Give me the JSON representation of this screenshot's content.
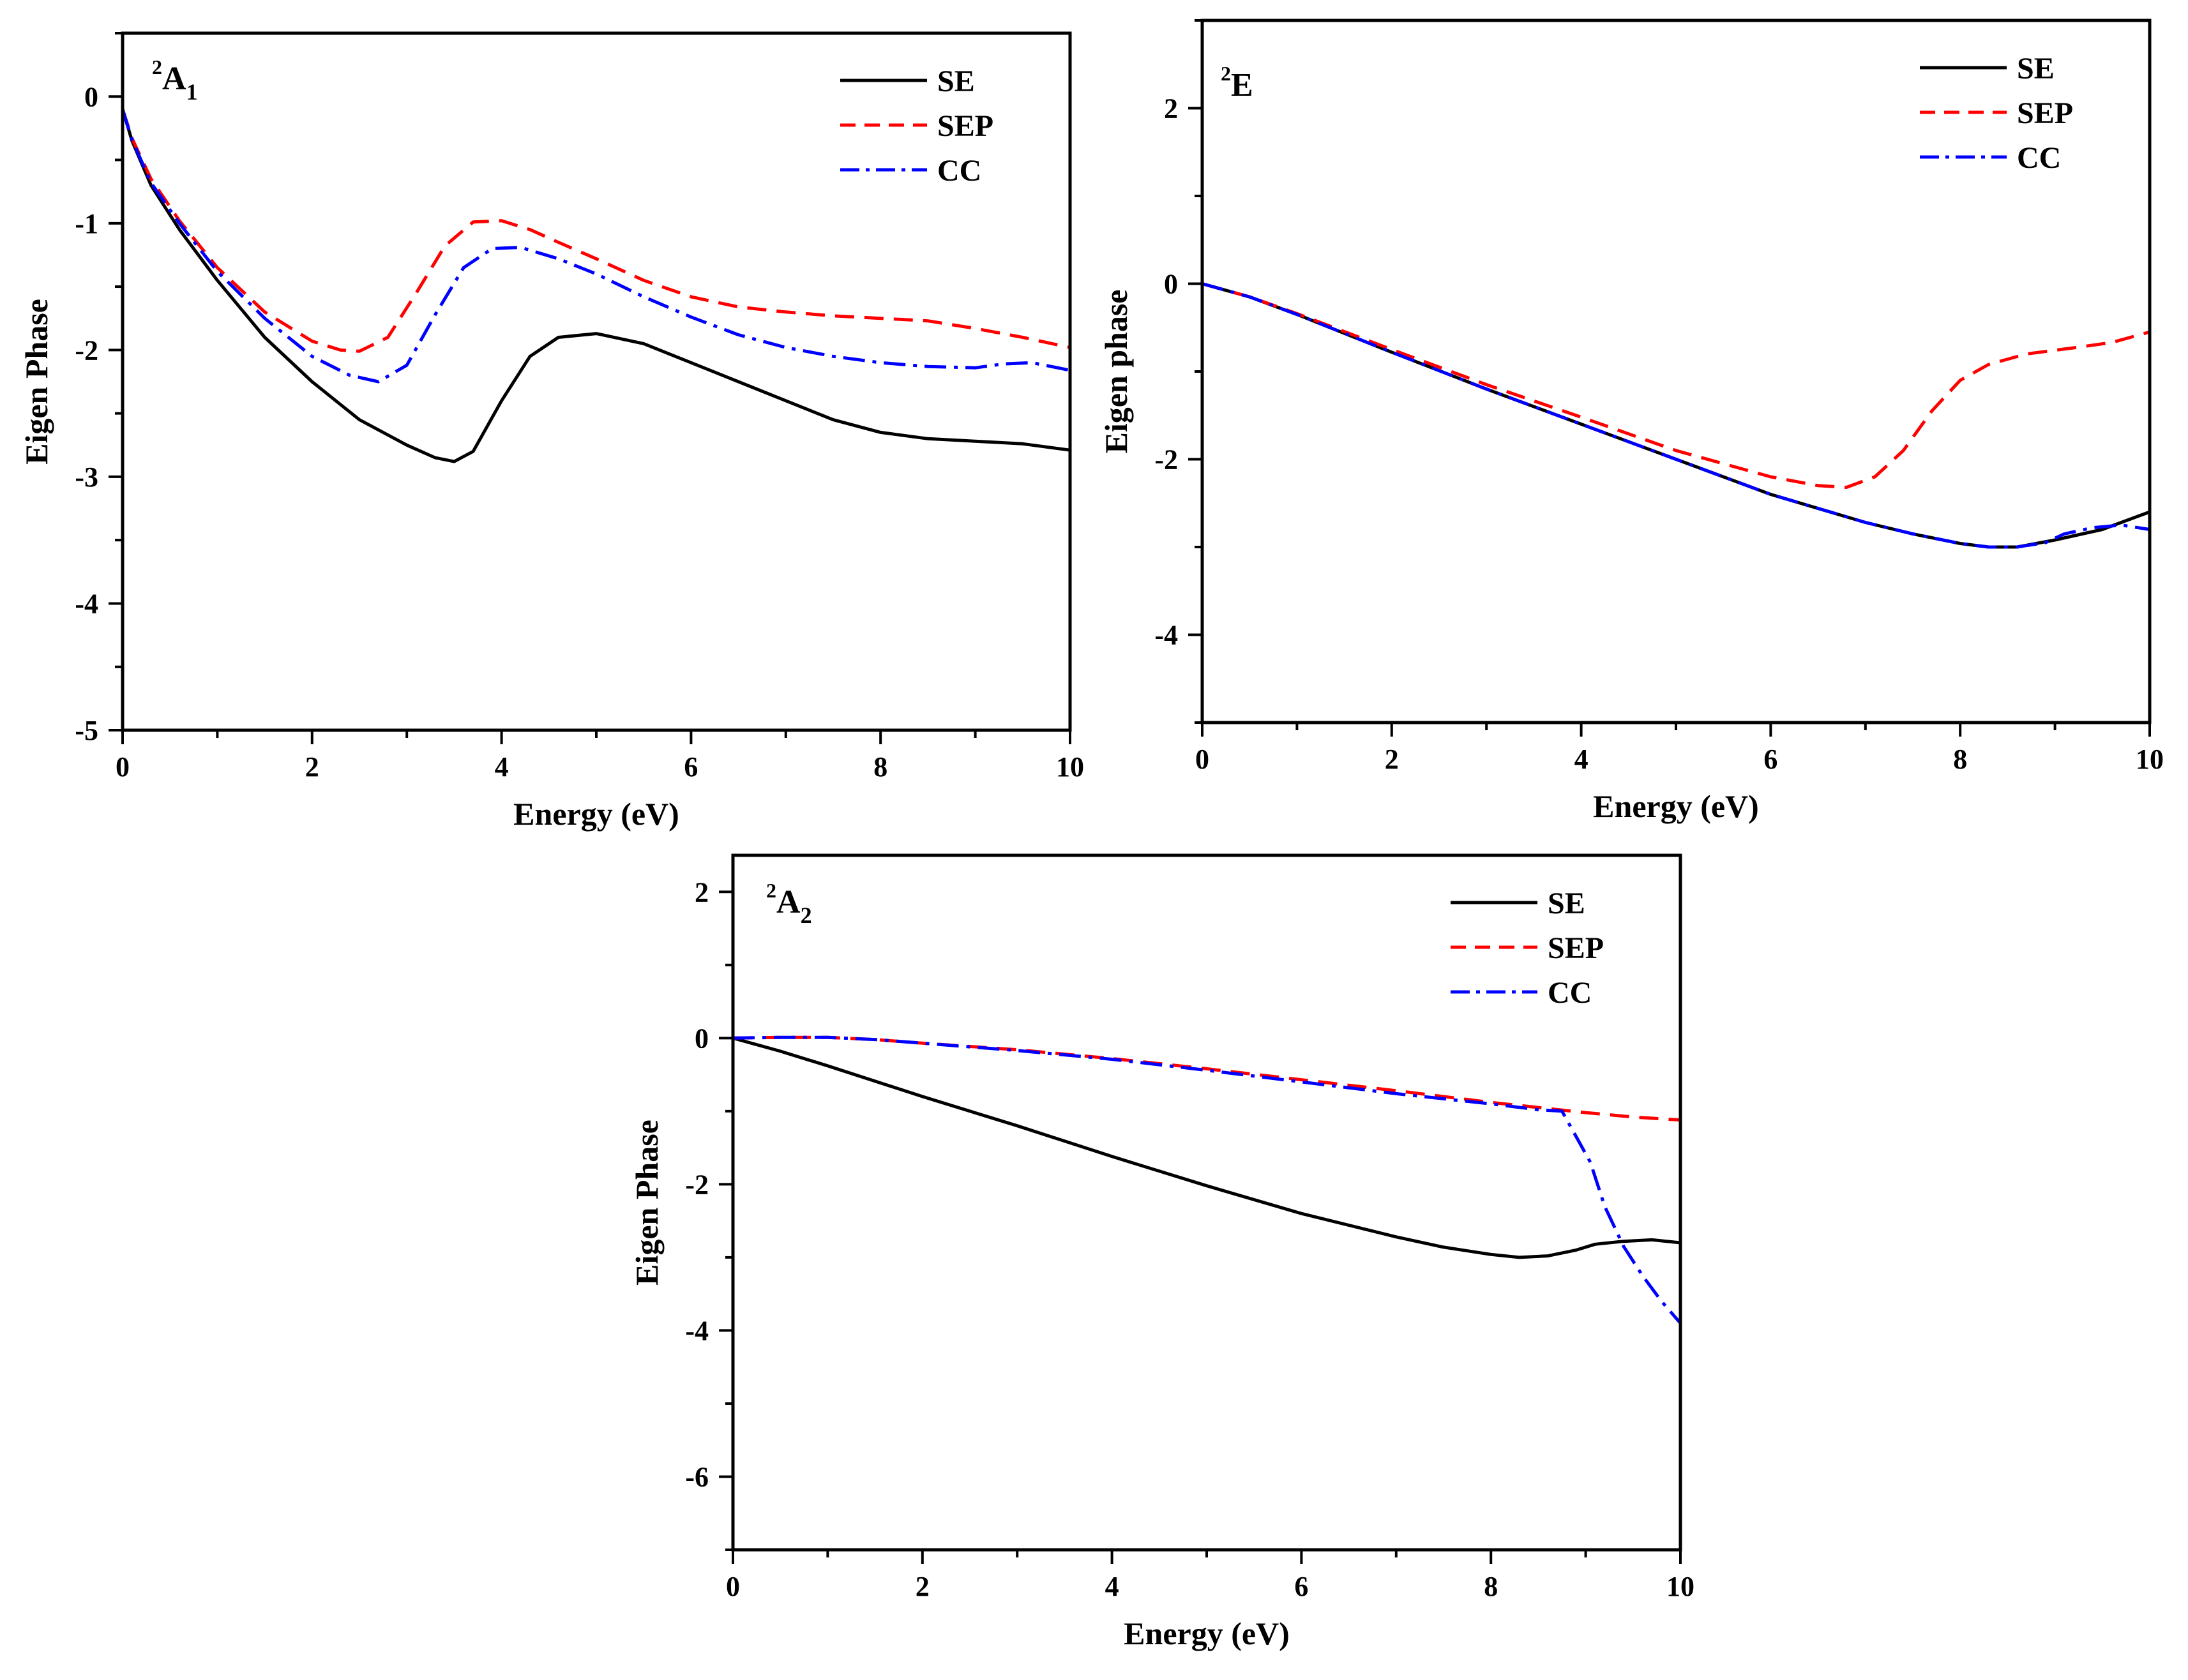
{
  "colors": {
    "SE": "#000000",
    "SEP": "#ff0000",
    "CC": "#0000ff",
    "axis": "#000000"
  },
  "chart_data": [
    {
      "type": "line",
      "panel_label": {
        "superscript": "2",
        "main": "A",
        "subscript": "1"
      },
      "xlabel": "Energy (eV)",
      "ylabel": "Eigen Phase",
      "xlim": [
        0,
        10
      ],
      "ylim": [
        -5,
        0.5
      ],
      "xticks": [
        0,
        2,
        4,
        6,
        8,
        10
      ],
      "yticks": [
        0,
        -1,
        -2,
        -3,
        -4,
        -5
      ],
      "x_minor_step": 1,
      "y_minor_step": 0.5,
      "legend_position": "top-right",
      "series": [
        {
          "name": "SE",
          "style": "solid",
          "x": [
            0,
            0.1,
            0.3,
            0.6,
            1,
            1.5,
            2,
            2.5,
            3,
            3.3,
            3.5,
            3.7,
            4,
            4.3,
            4.6,
            5,
            5.5,
            6,
            6.5,
            7,
            7.5,
            8,
            8.5,
            9,
            9.5,
            10
          ],
          "y": [
            -0.1,
            -0.35,
            -0.7,
            -1.05,
            -1.45,
            -1.9,
            -2.25,
            -2.55,
            -2.75,
            -2.85,
            -2.88,
            -2.8,
            -2.4,
            -2.05,
            -1.9,
            -1.87,
            -1.95,
            -2.1,
            -2.25,
            -2.4,
            -2.55,
            -2.65,
            -2.7,
            -2.72,
            -2.74,
            -2.79
          ]
        },
        {
          "name": "SEP",
          "style": "dashed",
          "x": [
            0,
            0.1,
            0.3,
            0.6,
            1,
            1.5,
            2,
            2.3,
            2.5,
            2.8,
            3.1,
            3.4,
            3.7,
            4,
            4.3,
            4.6,
            5,
            5.5,
            6,
            6.5,
            7,
            7.5,
            8,
            8.5,
            9,
            9.5,
            10
          ],
          "y": [
            -0.1,
            -0.33,
            -0.65,
            -0.98,
            -1.35,
            -1.7,
            -1.93,
            -2.0,
            -2.01,
            -1.9,
            -1.55,
            -1.18,
            -0.99,
            -0.98,
            -1.05,
            -1.15,
            -1.28,
            -1.45,
            -1.58,
            -1.66,
            -1.7,
            -1.73,
            -1.75,
            -1.77,
            -1.83,
            -1.9,
            -1.98
          ]
        },
        {
          "name": "CC",
          "style": "dashdot",
          "x": [
            0,
            0.1,
            0.3,
            0.6,
            1,
            1.5,
            2,
            2.4,
            2.7,
            3,
            3.3,
            3.6,
            3.9,
            4.2,
            4.6,
            5,
            5.5,
            6,
            6.5,
            7,
            7.5,
            8,
            8.5,
            9,
            9.3,
            9.6,
            10
          ],
          "y": [
            -0.1,
            -0.34,
            -0.68,
            -1.0,
            -1.38,
            -1.75,
            -2.05,
            -2.2,
            -2.25,
            -2.12,
            -1.72,
            -1.35,
            -1.2,
            -1.19,
            -1.28,
            -1.4,
            -1.58,
            -1.74,
            -1.88,
            -1.98,
            -2.05,
            -2.1,
            -2.13,
            -2.14,
            -2.11,
            -2.1,
            -2.16
          ]
        }
      ]
    },
    {
      "type": "line",
      "panel_label": {
        "superscript": "2",
        "main": "E",
        "subscript": ""
      },
      "xlabel": "Energy (eV)",
      "ylabel": "Eigen phase",
      "xlim": [
        0,
        10
      ],
      "ylim": [
        -5,
        3
      ],
      "xticks": [
        0,
        2,
        4,
        6,
        8,
        10
      ],
      "yticks": [
        2,
        0,
        -2,
        -4
      ],
      "x_minor_step": 1,
      "y_minor_step": 1,
      "legend_position": "top-right",
      "series": [
        {
          "name": "SE",
          "style": "solid",
          "x": [
            0,
            0.5,
            1,
            2,
            3,
            4,
            5,
            6,
            7,
            7.5,
            8,
            8.3,
            8.6,
            9,
            9.5,
            10
          ],
          "y": [
            0,
            -0.15,
            -0.35,
            -0.78,
            -1.2,
            -1.6,
            -2.0,
            -2.4,
            -2.72,
            -2.85,
            -2.96,
            -3.0,
            -3.0,
            -2.92,
            -2.8,
            -2.6
          ]
        },
        {
          "name": "SEP",
          "style": "dashed",
          "x": [
            0,
            0.5,
            1,
            2,
            3,
            4,
            5,
            6,
            6.5,
            6.8,
            7.1,
            7.4,
            7.7,
            8,
            8.3,
            8.7,
            9.2,
            9.6,
            10
          ],
          "y": [
            0,
            -0.15,
            -0.34,
            -0.75,
            -1.15,
            -1.52,
            -1.9,
            -2.2,
            -2.3,
            -2.32,
            -2.2,
            -1.9,
            -1.45,
            -1.1,
            -0.92,
            -0.8,
            -0.73,
            -0.67,
            -0.55
          ]
        },
        {
          "name": "CC",
          "style": "dashdot",
          "x": [
            0,
            0.5,
            1,
            2,
            3,
            4,
            5,
            6,
            7,
            7.5,
            8,
            8.3,
            8.6,
            8.9,
            9.1,
            9.4,
            9.7,
            10
          ],
          "y": [
            0,
            -0.15,
            -0.35,
            -0.78,
            -1.2,
            -1.6,
            -2.0,
            -2.4,
            -2.72,
            -2.85,
            -2.96,
            -3.0,
            -3.0,
            -2.95,
            -2.85,
            -2.78,
            -2.75,
            -2.8
          ]
        }
      ]
    },
    {
      "type": "line",
      "panel_label": {
        "superscript": "2",
        "main": "A",
        "subscript": "2"
      },
      "xlabel": "Energy (eV)",
      "ylabel": "Eigen Phase",
      "xlim": [
        0,
        10
      ],
      "ylim": [
        -7,
        2.5
      ],
      "xticks": [
        0,
        2,
        4,
        6,
        8,
        10
      ],
      "yticks": [
        2,
        0,
        -2,
        -4,
        -6
      ],
      "x_minor_step": 1,
      "y_minor_step": 1,
      "legend_position": "top-right",
      "series": [
        {
          "name": "SE",
          "style": "solid",
          "x": [
            0,
            0.5,
            1,
            2,
            3,
            4,
            5,
            6,
            7,
            7.5,
            8,
            8.3,
            8.6,
            8.9,
            9.1,
            9.4,
            9.7,
            10
          ],
          "y": [
            0,
            -0.18,
            -0.38,
            -0.8,
            -1.2,
            -1.62,
            -2.02,
            -2.4,
            -2.72,
            -2.86,
            -2.96,
            -3.0,
            -2.98,
            -2.9,
            -2.82,
            -2.78,
            -2.76,
            -2.8
          ]
        },
        {
          "name": "SEP",
          "style": "dashed",
          "x": [
            0,
            0.5,
            1,
            1.5,
            2,
            3,
            4,
            5,
            6,
            7,
            8,
            8.5,
            9,
            9.5,
            10
          ],
          "y": [
            0,
            0.01,
            0.01,
            -0.02,
            -0.07,
            -0.16,
            -0.28,
            -0.42,
            -0.57,
            -0.72,
            -0.88,
            -0.95,
            -1.02,
            -1.08,
            -1.12
          ]
        },
        {
          "name": "CC",
          "style": "dashdot",
          "x": [
            0,
            0.5,
            1,
            1.5,
            2,
            3,
            4,
            5,
            6,
            7,
            8,
            8.5,
            8.75,
            8.9,
            9.05,
            9.2,
            9.4,
            9.6,
            9.8,
            10
          ],
          "y": [
            0,
            0.01,
            0.01,
            -0.02,
            -0.07,
            -0.17,
            -0.29,
            -0.44,
            -0.6,
            -0.76,
            -0.9,
            -0.98,
            -1.0,
            -1.35,
            -1.7,
            -2.3,
            -2.85,
            -3.25,
            -3.6,
            -3.9
          ]
        }
      ]
    }
  ]
}
